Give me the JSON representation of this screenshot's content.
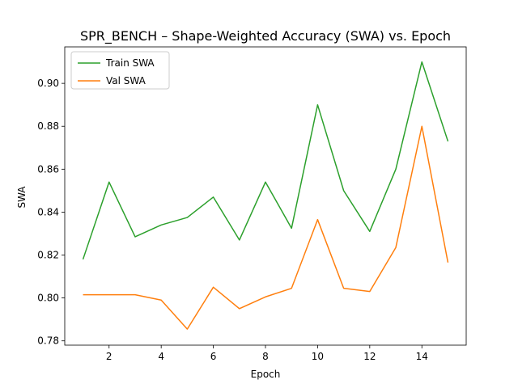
{
  "chart_data": {
    "type": "line",
    "title": "SPR_BENCH – Shape-Weighted Accuracy (SWA) vs. Epoch",
    "xlabel": "Epoch",
    "ylabel": "SWA",
    "xlim": [
      0.3,
      15.7
    ],
    "ylim": [
      0.778,
      0.917
    ],
    "xticks": [
      2,
      4,
      6,
      8,
      10,
      12,
      14
    ],
    "yticks": [
      0.78,
      0.8,
      0.82,
      0.84,
      0.86,
      0.88,
      0.9
    ],
    "ytick_labels": [
      "0.78",
      "0.80",
      "0.82",
      "0.84",
      "0.86",
      "0.88",
      "0.90"
    ],
    "grid": false,
    "legend_position": "top-left",
    "x": [
      1,
      2,
      3,
      4,
      5,
      6,
      7,
      8,
      9,
      10,
      11,
      12,
      13,
      14,
      15
    ],
    "series": [
      {
        "name": "Train SWA",
        "color": "#2ca02c",
        "values": [
          0.818,
          0.854,
          0.8285,
          0.834,
          0.8375,
          0.847,
          0.827,
          0.854,
          0.8325,
          0.89,
          0.85,
          0.831,
          0.86,
          0.91,
          0.873
        ]
      },
      {
        "name": "Val SWA",
        "color": "#ff7f0e",
        "values": [
          0.8015,
          0.8015,
          0.8015,
          0.799,
          0.7855,
          0.805,
          0.795,
          0.8005,
          0.8045,
          0.8365,
          0.8045,
          0.803,
          0.8235,
          0.88,
          0.8165
        ]
      }
    ]
  }
}
